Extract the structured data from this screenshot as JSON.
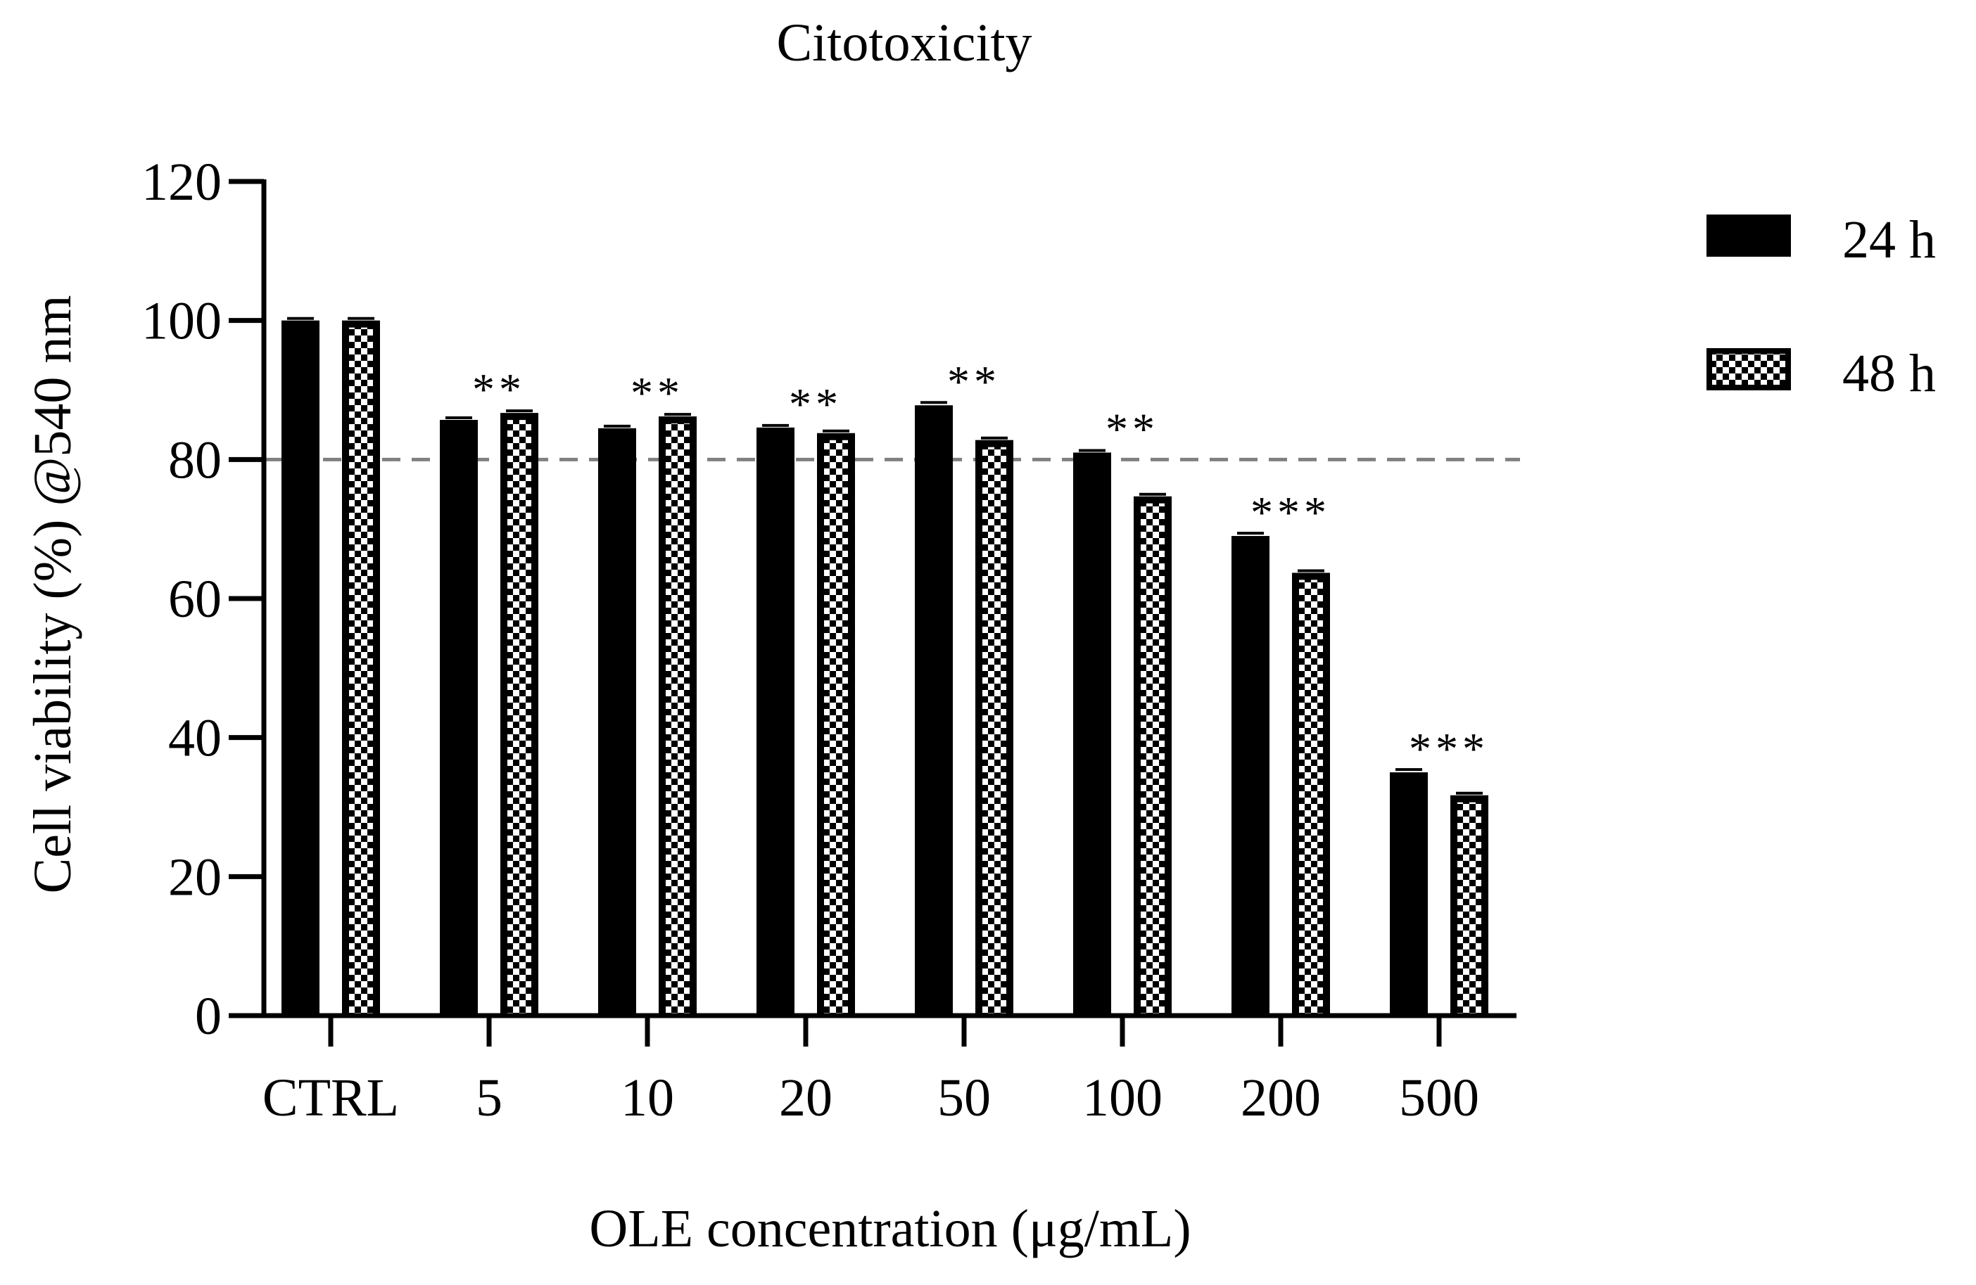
{
  "chart_data": {
    "type": "bar",
    "title": "Citotoxicity",
    "xlabel": "OLE concentration (μg/mL)",
    "ylabel": "Cell viability (%) @540 nm",
    "ylim": [
      0,
      120
    ],
    "yticks": [
      0,
      20,
      40,
      60,
      80,
      100,
      120
    ],
    "categories": [
      "CTRL",
      "5",
      "10",
      "20",
      "50",
      "100",
      "200",
      "500"
    ],
    "series": [
      {
        "name": "24 h",
        "pattern": "solid",
        "values": [
          100,
          85.7,
          84.5,
          84.6,
          87.8,
          81.0,
          69.0,
          35.0
        ],
        "errors": [
          0.3,
          0.3,
          0.3,
          0.3,
          0.4,
          0.3,
          0.4,
          0.4
        ]
      },
      {
        "name": "48 h",
        "pattern": "checkered",
        "values": [
          100,
          86.7,
          86.2,
          83.8,
          82.8,
          74.7,
          63.7,
          31.7
        ],
        "errors": [
          0.3,
          0.3,
          0.3,
          0.3,
          0.3,
          0.3,
          0.3,
          0.3
        ]
      }
    ],
    "significance": [
      "",
      "**",
      "**",
      "**",
      "**",
      "**",
      "***",
      "***"
    ],
    "reference_line": {
      "value": 80,
      "style": "dashed",
      "color": "#808080"
    },
    "legend_position": "top-right",
    "grid": false,
    "colors": {
      "bar": "#000000",
      "pattern_light": "#ffffff",
      "reference": "#808080"
    }
  }
}
